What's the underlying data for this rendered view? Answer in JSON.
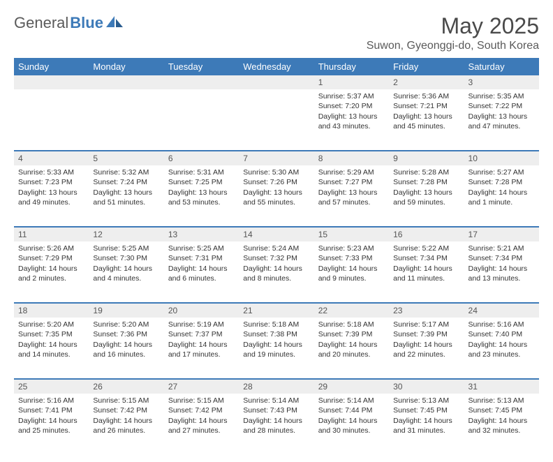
{
  "brand": {
    "part1": "General",
    "part2": "Blue"
  },
  "title": "May 2025",
  "location": "Suwon, Gyeonggi-do, South Korea",
  "colors": {
    "header_bg": "#3d7ab8",
    "header_text": "#ffffff",
    "daynum_bg": "#eeeeee",
    "row_divider": "#3d7ab8",
    "text": "#333333",
    "title_text": "#4a4a4a"
  },
  "day_headers": [
    "Sunday",
    "Monday",
    "Tuesday",
    "Wednesday",
    "Thursday",
    "Friday",
    "Saturday"
  ],
  "weeks": [
    {
      "nums": [
        "",
        "",
        "",
        "",
        "1",
        "2",
        "3"
      ],
      "cells": [
        null,
        null,
        null,
        null,
        {
          "sunrise": "Sunrise: 5:37 AM",
          "sunset": "Sunset: 7:20 PM",
          "daylight": "Daylight: 13 hours and 43 minutes."
        },
        {
          "sunrise": "Sunrise: 5:36 AM",
          "sunset": "Sunset: 7:21 PM",
          "daylight": "Daylight: 13 hours and 45 minutes."
        },
        {
          "sunrise": "Sunrise: 5:35 AM",
          "sunset": "Sunset: 7:22 PM",
          "daylight": "Daylight: 13 hours and 47 minutes."
        }
      ]
    },
    {
      "nums": [
        "4",
        "5",
        "6",
        "7",
        "8",
        "9",
        "10"
      ],
      "cells": [
        {
          "sunrise": "Sunrise: 5:33 AM",
          "sunset": "Sunset: 7:23 PM",
          "daylight": "Daylight: 13 hours and 49 minutes."
        },
        {
          "sunrise": "Sunrise: 5:32 AM",
          "sunset": "Sunset: 7:24 PM",
          "daylight": "Daylight: 13 hours and 51 minutes."
        },
        {
          "sunrise": "Sunrise: 5:31 AM",
          "sunset": "Sunset: 7:25 PM",
          "daylight": "Daylight: 13 hours and 53 minutes."
        },
        {
          "sunrise": "Sunrise: 5:30 AM",
          "sunset": "Sunset: 7:26 PM",
          "daylight": "Daylight: 13 hours and 55 minutes."
        },
        {
          "sunrise": "Sunrise: 5:29 AM",
          "sunset": "Sunset: 7:27 PM",
          "daylight": "Daylight: 13 hours and 57 minutes."
        },
        {
          "sunrise": "Sunrise: 5:28 AM",
          "sunset": "Sunset: 7:28 PM",
          "daylight": "Daylight: 13 hours and 59 minutes."
        },
        {
          "sunrise": "Sunrise: 5:27 AM",
          "sunset": "Sunset: 7:28 PM",
          "daylight": "Daylight: 14 hours and 1 minute."
        }
      ]
    },
    {
      "nums": [
        "11",
        "12",
        "13",
        "14",
        "15",
        "16",
        "17"
      ],
      "cells": [
        {
          "sunrise": "Sunrise: 5:26 AM",
          "sunset": "Sunset: 7:29 PM",
          "daylight": "Daylight: 14 hours and 2 minutes."
        },
        {
          "sunrise": "Sunrise: 5:25 AM",
          "sunset": "Sunset: 7:30 PM",
          "daylight": "Daylight: 14 hours and 4 minutes."
        },
        {
          "sunrise": "Sunrise: 5:25 AM",
          "sunset": "Sunset: 7:31 PM",
          "daylight": "Daylight: 14 hours and 6 minutes."
        },
        {
          "sunrise": "Sunrise: 5:24 AM",
          "sunset": "Sunset: 7:32 PM",
          "daylight": "Daylight: 14 hours and 8 minutes."
        },
        {
          "sunrise": "Sunrise: 5:23 AM",
          "sunset": "Sunset: 7:33 PM",
          "daylight": "Daylight: 14 hours and 9 minutes."
        },
        {
          "sunrise": "Sunrise: 5:22 AM",
          "sunset": "Sunset: 7:34 PM",
          "daylight": "Daylight: 14 hours and 11 minutes."
        },
        {
          "sunrise": "Sunrise: 5:21 AM",
          "sunset": "Sunset: 7:34 PM",
          "daylight": "Daylight: 14 hours and 13 minutes."
        }
      ]
    },
    {
      "nums": [
        "18",
        "19",
        "20",
        "21",
        "22",
        "23",
        "24"
      ],
      "cells": [
        {
          "sunrise": "Sunrise: 5:20 AM",
          "sunset": "Sunset: 7:35 PM",
          "daylight": "Daylight: 14 hours and 14 minutes."
        },
        {
          "sunrise": "Sunrise: 5:20 AM",
          "sunset": "Sunset: 7:36 PM",
          "daylight": "Daylight: 14 hours and 16 minutes."
        },
        {
          "sunrise": "Sunrise: 5:19 AM",
          "sunset": "Sunset: 7:37 PM",
          "daylight": "Daylight: 14 hours and 17 minutes."
        },
        {
          "sunrise": "Sunrise: 5:18 AM",
          "sunset": "Sunset: 7:38 PM",
          "daylight": "Daylight: 14 hours and 19 minutes."
        },
        {
          "sunrise": "Sunrise: 5:18 AM",
          "sunset": "Sunset: 7:39 PM",
          "daylight": "Daylight: 14 hours and 20 minutes."
        },
        {
          "sunrise": "Sunrise: 5:17 AM",
          "sunset": "Sunset: 7:39 PM",
          "daylight": "Daylight: 14 hours and 22 minutes."
        },
        {
          "sunrise": "Sunrise: 5:16 AM",
          "sunset": "Sunset: 7:40 PM",
          "daylight": "Daylight: 14 hours and 23 minutes."
        }
      ]
    },
    {
      "nums": [
        "25",
        "26",
        "27",
        "28",
        "29",
        "30",
        "31"
      ],
      "cells": [
        {
          "sunrise": "Sunrise: 5:16 AM",
          "sunset": "Sunset: 7:41 PM",
          "daylight": "Daylight: 14 hours and 25 minutes."
        },
        {
          "sunrise": "Sunrise: 5:15 AM",
          "sunset": "Sunset: 7:42 PM",
          "daylight": "Daylight: 14 hours and 26 minutes."
        },
        {
          "sunrise": "Sunrise: 5:15 AM",
          "sunset": "Sunset: 7:42 PM",
          "daylight": "Daylight: 14 hours and 27 minutes."
        },
        {
          "sunrise": "Sunrise: 5:14 AM",
          "sunset": "Sunset: 7:43 PM",
          "daylight": "Daylight: 14 hours and 28 minutes."
        },
        {
          "sunrise": "Sunrise: 5:14 AM",
          "sunset": "Sunset: 7:44 PM",
          "daylight": "Daylight: 14 hours and 30 minutes."
        },
        {
          "sunrise": "Sunrise: 5:13 AM",
          "sunset": "Sunset: 7:45 PM",
          "daylight": "Daylight: 14 hours and 31 minutes."
        },
        {
          "sunrise": "Sunrise: 5:13 AM",
          "sunset": "Sunset: 7:45 PM",
          "daylight": "Daylight: 14 hours and 32 minutes."
        }
      ]
    }
  ]
}
